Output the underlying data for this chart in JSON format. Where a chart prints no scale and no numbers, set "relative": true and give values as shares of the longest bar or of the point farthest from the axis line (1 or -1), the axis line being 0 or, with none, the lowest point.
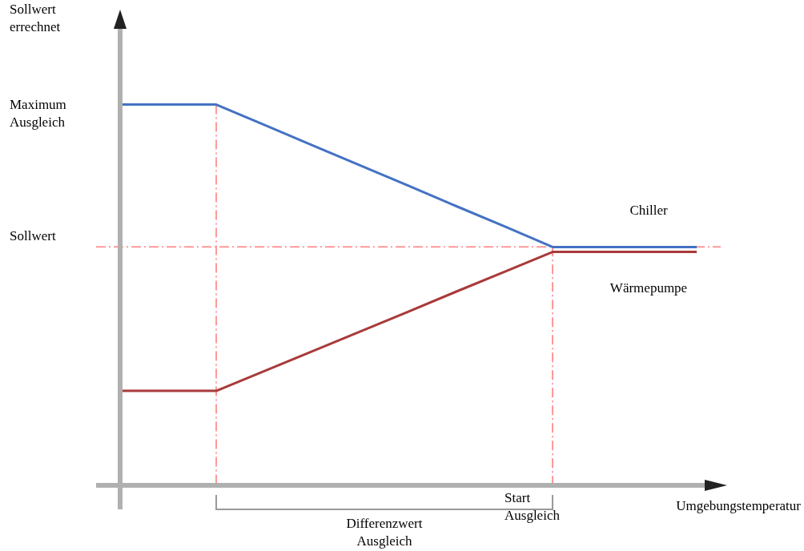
{
  "chart_data": {
    "type": "line",
    "relative": true,
    "xlabel": "Umgebungstemperatur",
    "categories": [
      null,
      null,
      null,
      null,
      null,
      null,
      null,
      null,
      null,
      null,
      null,
      null,
      null
    ],
    "series": [
      {
        "name": "Chiller",
        "color": "#4472c4",
        "values": [
          1,
          1,
          1,
          0.947,
          0.893,
          0.84,
          0.787,
          0.733,
          0.68,
          0.626,
          0.626,
          0.626,
          0.626
        ]
      },
      {
        "name": "Wärmepumpe",
        "color": "#a93a3a",
        "values": [
          0.248,
          0.248,
          0.248,
          0.3,
          0.352,
          0.404,
          0.456,
          0.509,
          0.561,
          0.613,
          0.613,
          0.613,
          0.613
        ]
      }
    ],
    "ref_lines": [
      {
        "axis": "y",
        "value": 0.626,
        "label": "Sollwert",
        "color": "#ff9999",
        "line_style": "dashed"
      }
    ],
    "annotations": [
      "Sollwert errechnet",
      "Maximum Ausgleich",
      "Start Ausgleich",
      "Differenzwert Ausgleich"
    ],
    "line_style": "solid"
  }
}
